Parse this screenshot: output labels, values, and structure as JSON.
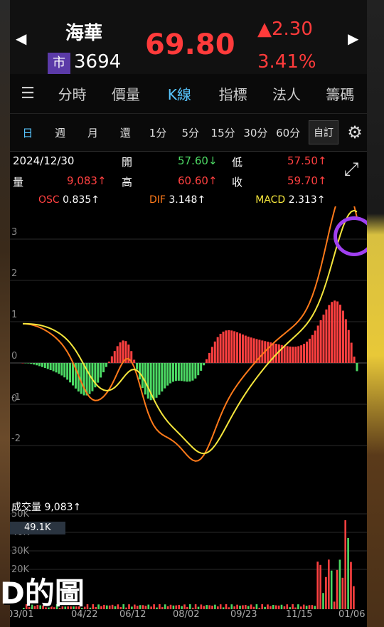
{
  "stock": {
    "name": "海華",
    "market_badge": "市",
    "code": "3694",
    "price": "69.80",
    "change": "▲2.30",
    "change_pct": "3.41%"
  },
  "tabs": [
    "分時",
    "價量",
    "K線",
    "指標",
    "法人",
    "籌碼"
  ],
  "active_tab": "K線",
  "periods": [
    "日",
    "週",
    "月",
    "還",
    "1分",
    "5分",
    "15分",
    "30分",
    "60分"
  ],
  "custom_label": "自訂",
  "info": {
    "date": "2024/12/30",
    "open_label": "開",
    "open": "57.60↓",
    "low_label": "低",
    "low": "57.50↑",
    "vol_label": "量",
    "vol": "9,083↑",
    "high_label": "高",
    "high": "60.60↑",
    "close_label": "收",
    "close": "59.70↑"
  },
  "indicators": {
    "osc_label": "OSC",
    "osc": "0.835↑",
    "dif_label": "DIF",
    "dif": "3.148↑",
    "macd_label": "MACD",
    "macd": "2.313↑"
  },
  "chart_data": {
    "type": "bar",
    "title": "MACD",
    "ylim": [
      -2,
      3.5
    ],
    "yticks": [
      "3",
      "2",
      "1",
      "0",
      "0",
      "-1",
      "-2"
    ],
    "x": [
      "03/01",
      "04/22",
      "06/12",
      "08/02",
      "09/23",
      "11/15",
      "01/06"
    ],
    "series": [
      {
        "name": "DIF"
      },
      {
        "name": "MACD"
      },
      {
        "name": "OSC"
      }
    ]
  },
  "volume": {
    "label": "成交量",
    "value": "9,083↑",
    "ticks": [
      "50K",
      "40K",
      "30K",
      "20K"
    ],
    "box": "49.1K"
  },
  "caption": "D的圖",
  "colors": {
    "up": "#ff4040",
    "down": "#4cd964",
    "active": "#58c6ff",
    "dif": "#ff7a1a",
    "macd": "#f5e63c"
  }
}
